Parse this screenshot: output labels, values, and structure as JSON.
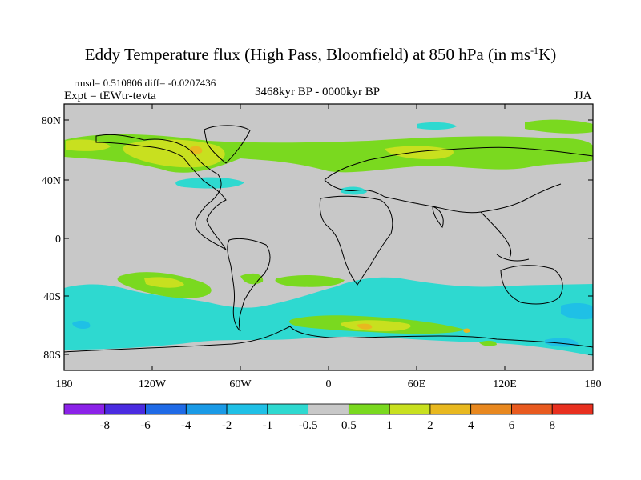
{
  "title": {
    "main": "Eddy Temperature flux (High Pass, Bloomfield) at 850 hPa (in ms",
    "sup": "-1",
    "tail": "K)"
  },
  "header": {
    "stats": "rmsd= 0.510806 diff= -0.0207436",
    "experiment": "Expt = tEWtr-tevta",
    "period": "3468kyr BP - 0000kyr BP",
    "season": "JJA"
  },
  "map": {
    "background_color": "#c8c8c8",
    "coastline_color": "#000000",
    "lat_ticks": [
      "80N",
      "40N",
      "0",
      "40S",
      "80S"
    ],
    "lon_ticks": [
      "180",
      "120W",
      "60W",
      "0",
      "60E",
      "120E",
      "180"
    ]
  },
  "colorbar": {
    "labels": [
      "-8",
      "-6",
      "-4",
      "-2",
      "-1",
      "-0.5",
      "0.5",
      "1",
      "2",
      "4",
      "6",
      "8"
    ],
    "colors": [
      "#8b22e8",
      "#4a2be0",
      "#1f6ae6",
      "#1a9ae6",
      "#1fc0e6",
      "#2ed9d0",
      "#c8c8c8",
      "#7ad91f",
      "#c8e01f",
      "#e8b81f",
      "#e8881f",
      "#e85a1f",
      "#e8301f"
    ]
  }
}
